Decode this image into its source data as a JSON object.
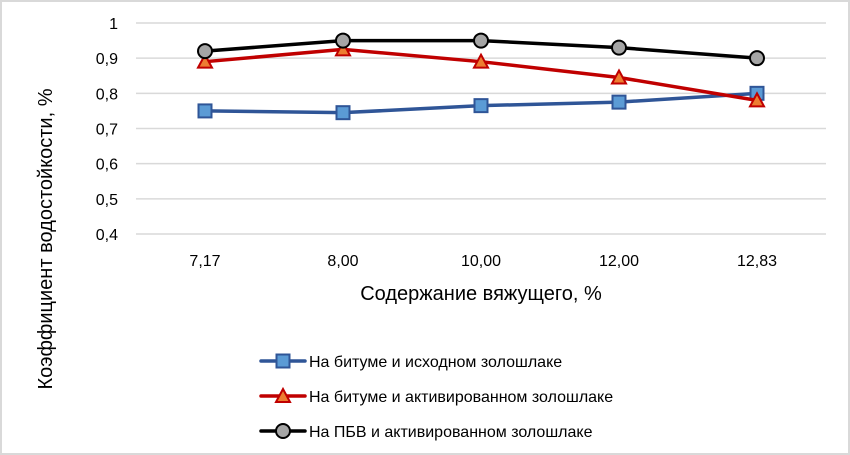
{
  "chart_data": {
    "type": "line",
    "title": "",
    "xlabel": "Содержание вяжущего, %",
    "ylabel": "Коэффициент водостойкости, %",
    "categories": [
      "7,17",
      "8,00",
      "10,00",
      "12,00",
      "12,83"
    ],
    "ylim": [
      0.4,
      1.0
    ],
    "yticks": [
      "0,4",
      "0,5",
      "0,6",
      "0,7",
      "0,8",
      "0,9",
      "1"
    ],
    "grid": true,
    "legend_position": "bottom",
    "series": [
      {
        "name": "На битуме и исходном золошлаке",
        "marker": "square",
        "line_color": "#2f5597",
        "marker_fill": "#5b9bd5",
        "values": [
          0.75,
          0.745,
          0.765,
          0.775,
          0.8
        ]
      },
      {
        "name": "На битуме и активированном золошлаке",
        "marker": "triangle",
        "line_color": "#c00000",
        "marker_fill": "#ed7d31",
        "values": [
          0.89,
          0.925,
          0.89,
          0.845,
          0.78
        ]
      },
      {
        "name": "На ПБВ и активированном золошлаке",
        "marker": "circle",
        "line_color": "#000000",
        "marker_fill": "#a5a5a5",
        "values": [
          0.92,
          0.95,
          0.95,
          0.93,
          0.9
        ]
      }
    ]
  },
  "colors": {
    "gridline": "#d9d9d9",
    "border": "#d9d9d9",
    "background": "#ffffff"
  }
}
